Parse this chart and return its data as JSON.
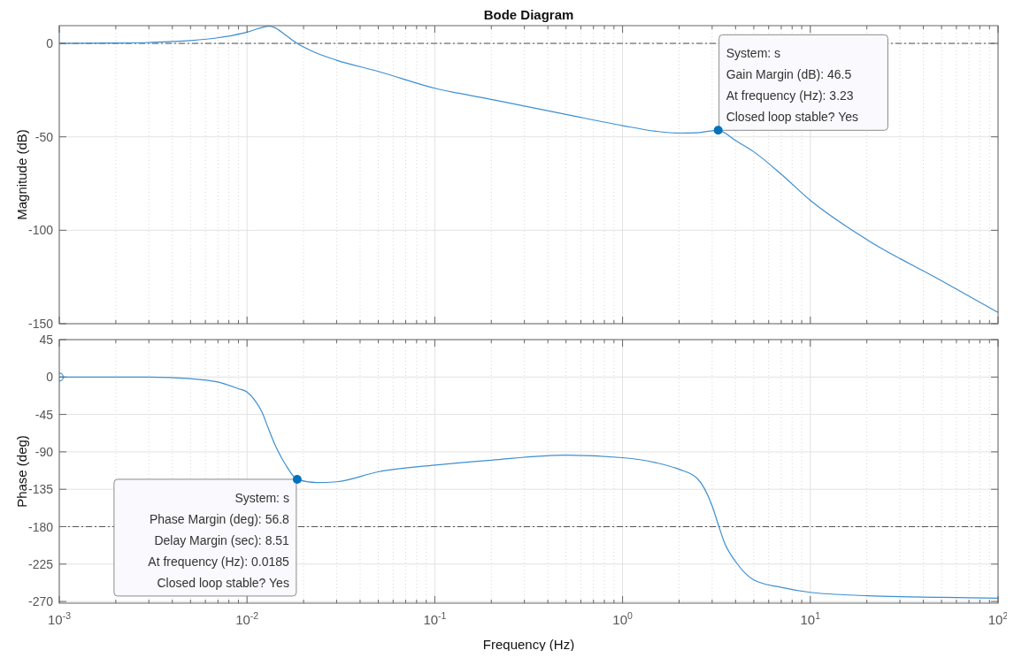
{
  "chart_data": [
    {
      "type": "line",
      "title": "Bode Diagram",
      "ylabel": "Magnitude (dB)",
      "log": "x",
      "grid": true,
      "tick_labels": "y",
      "xlim": [
        0.001,
        100
      ],
      "ylim": [
        -150,
        9.5
      ],
      "yticks": [
        -150,
        -100,
        -50,
        0
      ],
      "xticks": [
        0.001,
        {
          "value": 0.002,
          "label": null
        },
        {
          "value": 0.003,
          "label": null
        },
        {
          "value": 0.004,
          "label": null
        },
        {
          "value": 0.005,
          "label": null
        },
        {
          "value": 0.006,
          "label": null
        },
        {
          "value": 0.007,
          "label": null
        },
        {
          "value": 0.008,
          "label": null
        },
        {
          "value": 0.009,
          "label": null
        },
        0.01,
        {
          "value": 0.02,
          "label": null
        },
        {
          "value": 0.03,
          "label": null
        },
        {
          "value": 0.04,
          "label": null
        },
        {
          "value": 0.05,
          "label": null
        },
        {
          "value": 0.06,
          "label": null
        },
        {
          "value": 0.07,
          "label": null
        },
        {
          "value": 0.08,
          "label": null
        },
        {
          "value": 0.09,
          "label": null
        },
        0.1,
        {
          "value": 0.2,
          "label": null
        },
        {
          "value": 0.3,
          "label": null
        },
        {
          "value": 0.4,
          "label": null
        },
        {
          "value": 0.5,
          "label": null
        },
        {
          "value": 0.6,
          "label": null
        },
        {
          "value": 0.7,
          "label": null
        },
        {
          "value": 0.8,
          "label": null
        },
        {
          "value": 0.9,
          "label": null
        },
        1,
        {
          "value": 2,
          "label": null
        },
        {
          "value": 3,
          "label": null
        },
        {
          "value": 4,
          "label": null
        },
        {
          "value": 5,
          "label": null
        },
        {
          "value": 6,
          "label": null
        },
        {
          "value": 7,
          "label": null
        },
        {
          "value": 8,
          "label": null
        },
        {
          "value": 9,
          "label": null
        },
        10,
        {
          "value": 20,
          "label": null
        },
        {
          "value": 30,
          "label": null
        },
        {
          "value": 40,
          "label": null
        },
        {
          "value": 50,
          "label": null
        },
        {
          "value": 60,
          "label": null
        },
        {
          "value": 70,
          "label": null
        },
        {
          "value": 80,
          "label": null
        },
        {
          "value": 90,
          "label": null
        },
        100
      ],
      "series": [
        {
          "color": "#3d8fd1",
          "x": [
            0.001,
            0.002,
            0.003,
            0.005,
            0.007,
            0.01,
            0.012,
            0.013,
            0.014,
            0.016,
            0.0185,
            0.022,
            0.03,
            0.05,
            0.1,
            0.2,
            0.5,
            1,
            1.5,
            2,
            2.5,
            3.23,
            4,
            5,
            7,
            10,
            20,
            50,
            100
          ],
          "values": [
            0,
            0.2,
            0.5,
            1.5,
            3,
            6,
            8.5,
            9.2,
            8.5,
            4.5,
            0,
            -4,
            -9,
            -15,
            -24,
            -30,
            -38,
            -44,
            -47,
            -48,
            -47.8,
            -46.5,
            -52,
            -58,
            -70,
            -84,
            -105,
            -127,
            -144
          ]
        }
      ],
      "ref_lines": [
        {
          "axis": "y",
          "value": 0,
          "line_style": "dashed",
          "color": "#555555"
        }
      ],
      "annotations": [
        {
          "text": "System: s\nGain Margin (dB): 46.5\nAt frequency (Hz): 3.23\nClosed loop stable? Yes",
          "x": 3.23,
          "y": -46.5
        }
      ]
    },
    {
      "type": "line",
      "ylabel": "Phase (deg)",
      "xlabel": "Frequency  (Hz)",
      "log": "x",
      "grid": true,
      "xlim": [
        0.001,
        100
      ],
      "ylim": [
        -272,
        45
      ],
      "yticks": [
        -270,
        -225,
        -180,
        -135,
        -90,
        -45,
        0,
        45
      ],
      "xticks": [
        {
          "value": 0.001,
          "label": "10$^{-3}$"
        },
        {
          "value": 0.002,
          "label": null
        },
        {
          "value": 0.003,
          "label": null
        },
        {
          "value": 0.004,
          "label": null
        },
        {
          "value": 0.005,
          "label": null
        },
        {
          "value": 0.006,
          "label": null
        },
        {
          "value": 0.007,
          "label": null
        },
        {
          "value": 0.008,
          "label": null
        },
        {
          "value": 0.009,
          "label": null
        },
        {
          "value": 0.01,
          "label": "10$^{-2}$"
        },
        {
          "value": 0.02,
          "label": null
        },
        {
          "value": 0.03,
          "label": null
        },
        {
          "value": 0.04,
          "label": null
        },
        {
          "value": 0.05,
          "label": null
        },
        {
          "value": 0.06,
          "label": null
        },
        {
          "value": 0.07,
          "label": null
        },
        {
          "value": 0.08,
          "label": null
        },
        {
          "value": 0.09,
          "label": null
        },
        {
          "value": 0.1,
          "label": "10$^{-1}$"
        },
        {
          "value": 0.2,
          "label": null
        },
        {
          "value": 0.3,
          "label": null
        },
        {
          "value": 0.4,
          "label": null
        },
        {
          "value": 0.5,
          "label": null
        },
        {
          "value": 0.6,
          "label": null
        },
        {
          "value": 0.7,
          "label": null
        },
        {
          "value": 0.8,
          "label": null
        },
        {
          "value": 0.9,
          "label": null
        },
        {
          "value": 1,
          "label": "10$^{0}$"
        },
        {
          "value": 2,
          "label": null
        },
        {
          "value": 3,
          "label": null
        },
        {
          "value": 4,
          "label": null
        },
        {
          "value": 5,
          "label": null
        },
        {
          "value": 6,
          "label": null
        },
        {
          "value": 7,
          "label": null
        },
        {
          "value": 8,
          "label": null
        },
        {
          "value": 9,
          "label": null
        },
        {
          "value": 10,
          "label": "10$^{1}$"
        },
        {
          "value": 20,
          "label": null
        },
        {
          "value": 30,
          "label": null
        },
        {
          "value": 40,
          "label": null
        },
        {
          "value": 50,
          "label": null
        },
        {
          "value": 60,
          "label": null
        },
        {
          "value": 70,
          "label": null
        },
        {
          "value": 80,
          "label": null
        },
        {
          "value": 90,
          "label": null
        },
        {
          "value": 100,
          "label": "10$^{2}$"
        }
      ],
      "series": [
        {
          "color": "#3d8fd1",
          "x": [
            0.001,
            0.003,
            0.005,
            0.007,
            0.009,
            0.01,
            0.011,
            0.012,
            0.013,
            0.014,
            0.016,
            0.0185,
            0.0235,
            0.03,
            0.05,
            0.1,
            0.2,
            0.5,
            1,
            1.5,
            2,
            2.5,
            3,
            3.23,
            3.5,
            4,
            5,
            7,
            10,
            20,
            50,
            100
          ],
          "values": [
            0,
            0,
            -2,
            -6,
            -14,
            -18,
            -28,
            -42,
            -62,
            -80,
            -105,
            -123,
            -127,
            -126,
            -114,
            -106,
            -100,
            -94,
            -97,
            -103,
            -111,
            -122,
            -155,
            -177,
            -200,
            -222,
            -244,
            -253,
            -259,
            -263,
            -265,
            -266
          ]
        },
        {
          "type": "scatter",
          "marker": "circle",
          "color": "#3d8fd1",
          "x": [
            0.001
          ],
          "values": [
            0
          ]
        }
      ],
      "ref_lines": [
        {
          "axis": "y",
          "value": -180,
          "line_style": "dashed",
          "color": "#555555"
        }
      ],
      "annotations": [
        {
          "text": "System: s\nPhase Margin (deg): 56.8\nDelay Margin (sec): 8.51\nAt frequency (Hz): 0.0185\nClosed loop stable? Yes",
          "x": 0.0185,
          "y": -123
        }
      ]
    }
  ]
}
